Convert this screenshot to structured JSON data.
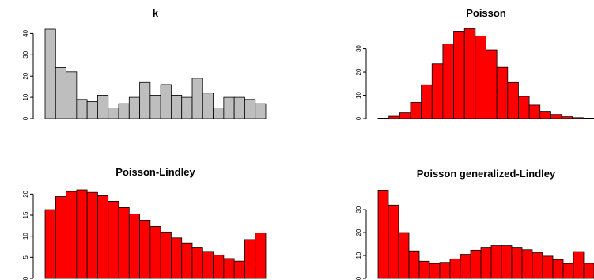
{
  "chart_data": [
    {
      "type": "bar",
      "title": "k",
      "xlabel": "",
      "ylabel": "",
      "ylim": [
        0,
        42
      ],
      "yticks": [
        0,
        10,
        20,
        30,
        40
      ],
      "color": "#bebebe",
      "values": [
        42,
        24,
        22,
        9,
        8,
        11,
        5,
        7,
        10,
        17,
        11,
        16,
        11,
        10,
        19,
        12,
        5,
        10,
        10,
        9,
        7
      ]
    },
    {
      "type": "bar",
      "title": "Poisson",
      "xlabel": "",
      "ylabel": "",
      "ylim": [
        0,
        38
      ],
      "yticks": [
        0,
        10,
        20,
        30
      ],
      "color": "#ff0000",
      "values": [
        0.2,
        1,
        2.5,
        7,
        14.5,
        23.5,
        32,
        37.5,
        38.5,
        35.5,
        29.5,
        22,
        15.5,
        9.5,
        5.8,
        3.2,
        1.8,
        0.8,
        0.4,
        0.2
      ]
    },
    {
      "type": "bar",
      "title": "Poisson-Lindley",
      "xlabel": "",
      "ylabel": "",
      "ylim": [
        0,
        21
      ],
      "yticks": [
        0,
        5,
        10,
        15,
        20
      ],
      "color": "#ff0000",
      "values": [
        16.3,
        19.4,
        20.6,
        21,
        20.4,
        19.6,
        18.3,
        16.8,
        15.3,
        13.8,
        12.3,
        11,
        9.6,
        8.4,
        7.4,
        6.4,
        5.5,
        4.7,
        4.1,
        9.2,
        10.8
      ]
    },
    {
      "type": "bar",
      "title": "Poisson generalized-Lindley",
      "xlabel": "",
      "ylabel": "",
      "ylim": [
        0,
        39
      ],
      "yticks": [
        0,
        10,
        20,
        30
      ],
      "color": "#ff0000",
      "values": [
        38.5,
        32,
        20,
        12,
        7.5,
        6.5,
        7,
        8.5,
        10.5,
        12.3,
        13.6,
        14.3,
        14.3,
        13.6,
        12.5,
        11.2,
        9.7,
        8.2,
        6.5,
        11.7,
        6.6
      ]
    }
  ]
}
